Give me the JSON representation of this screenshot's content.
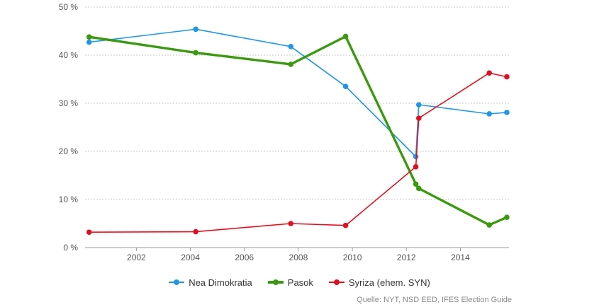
{
  "chart_data": {
    "type": "line",
    "y_tick_labels": [
      "0 %",
      "10 %",
      "20 %",
      "30 %",
      "40 %",
      "50 %"
    ],
    "y_ticks": [
      0,
      10,
      20,
      30,
      40,
      50
    ],
    "ylim": [
      0,
      50
    ],
    "x_tick_labels": [
      "2002",
      "2004",
      "2006",
      "2008",
      "2010",
      "2012",
      "2014"
    ],
    "x_ticks": [
      2002,
      2004,
      2006,
      2008,
      2010,
      2012,
      2014
    ],
    "xlim": [
      2000.1,
      2015.8
    ],
    "grid": "horizontal dashed",
    "legend_position": "bottom-center",
    "series": [
      {
        "name": "Nea Dimokratia",
        "color": "#1f96e8",
        "x": [
          2000.25,
          2004.2,
          2007.72,
          2009.75,
          2012.35,
          2012.46,
          2015.07,
          2015.72
        ],
        "values": [
          42.7,
          45.4,
          41.8,
          33.5,
          18.9,
          29.7,
          27.8,
          28.1
        ]
      },
      {
        "name": "Pasok",
        "color": "#3a9a0e",
        "x": [
          2000.25,
          2004.2,
          2007.72,
          2009.75,
          2012.35,
          2012.46,
          2015.07,
          2015.72
        ],
        "values": [
          43.8,
          40.5,
          38.1,
          43.9,
          13.2,
          12.3,
          4.7,
          6.3
        ]
      },
      {
        "name": "Syriza (ehem. SYN)",
        "color": "#e0101e",
        "x": [
          2000.25,
          2004.2,
          2007.72,
          2009.75,
          2012.35,
          2012.46,
          2015.07,
          2015.72
        ],
        "values": [
          3.2,
          3.3,
          5.0,
          4.6,
          16.8,
          26.9,
          36.3,
          35.5
        ]
      }
    ]
  },
  "legend": {
    "items": [
      "Nea Dimokratia",
      "Pasok",
      "Syriza (ehem. SYN)"
    ]
  },
  "source_text": "Quelle: NYT, NSD EED, IFES Election Guide"
}
